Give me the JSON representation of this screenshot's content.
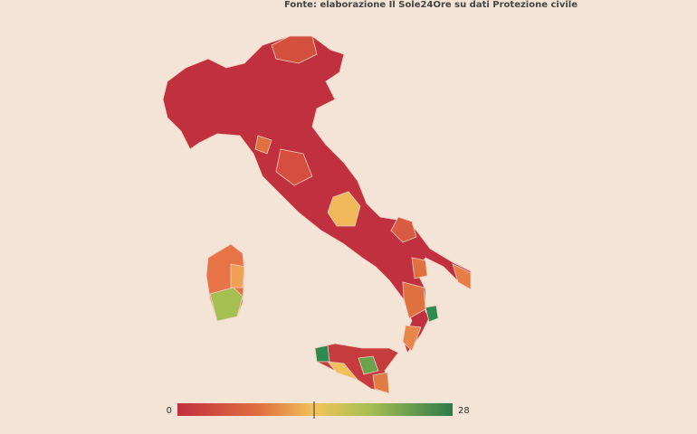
{
  "source": "Fonte: elaborazione Il Sole24Ore su dati Protezione civile",
  "legend": {
    "min": 0,
    "max": 28
  }
}
